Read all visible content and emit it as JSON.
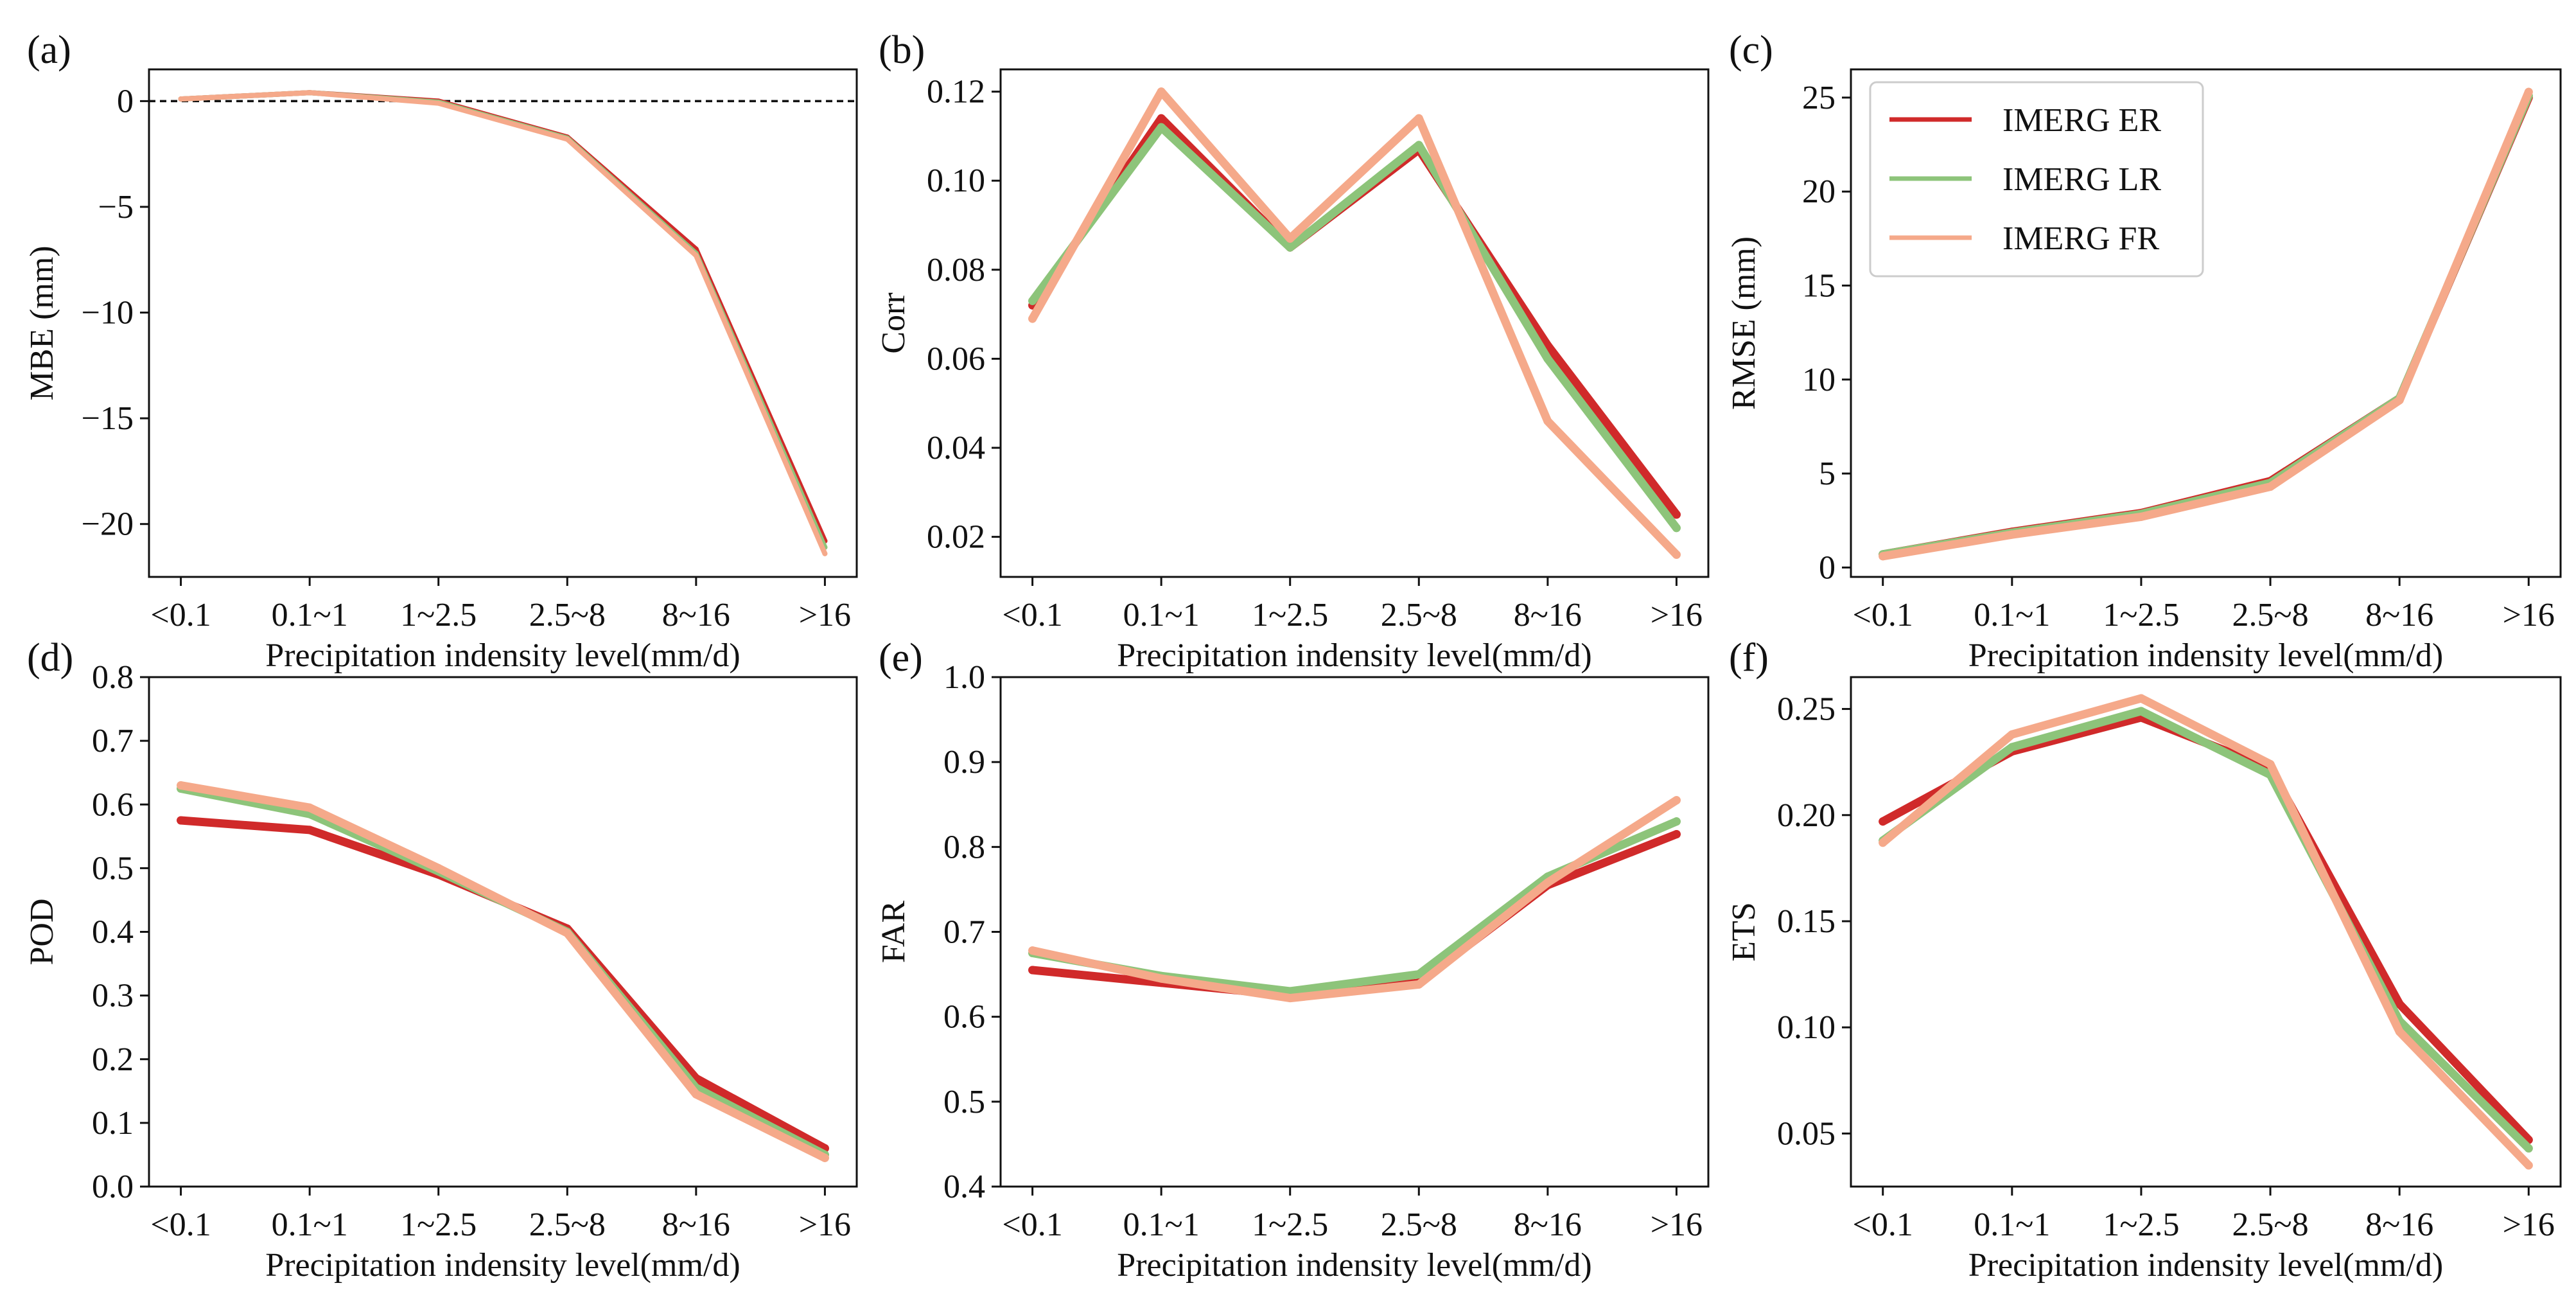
{
  "categories": [
    "<0.1",
    "0.1~1",
    "1~2.5",
    "2.5~8",
    "8~16",
    ">16"
  ],
  "xlabel": "Precipitation indensity level(mm/d)",
  "legend": {
    "location": "upper-left of panel (c)",
    "entries": [
      "IMERG ER",
      "IMERG LR",
      "IMERG FR"
    ]
  },
  "colors": {
    "er": "#d02a2a",
    "lr": "#8dc47a",
    "fr": "#f5a98a",
    "axis": "#111111"
  },
  "chart_data": [
    {
      "type": "line",
      "panel": "(a)",
      "ylabel": "MBE (mm)",
      "ylim": [
        -22.5,
        1.5
      ],
      "yticks": [
        0,
        -5,
        -10,
        -15,
        -20
      ],
      "ytick_labels": [
        "0",
        "−5",
        "−10",
        "−15",
        "−20"
      ],
      "reference_line": 0,
      "series": [
        {
          "name": "IMERG ER",
          "values": [
            0.1,
            0.4,
            0.0,
            -1.7,
            -7.0,
            -20.8
          ]
        },
        {
          "name": "IMERG LR",
          "values": [
            0.1,
            0.4,
            -0.05,
            -1.75,
            -7.2,
            -21.1
          ]
        },
        {
          "name": "IMERG FR",
          "values": [
            0.1,
            0.4,
            -0.1,
            -1.8,
            -7.3,
            -21.4
          ]
        }
      ]
    },
    {
      "type": "line",
      "panel": "(b)",
      "ylabel": "Corr",
      "ylim": [
        0.011,
        0.125
      ],
      "yticks": [
        0.02,
        0.04,
        0.06,
        0.08,
        0.1,
        0.12
      ],
      "ytick_labels": [
        "0.02",
        "0.04",
        "0.06",
        "0.08",
        "0.10",
        "0.12"
      ],
      "series": [
        {
          "name": "IMERG ER",
          "values": [
            0.072,
            0.114,
            0.085,
            0.107,
            0.063,
            0.025
          ]
        },
        {
          "name": "IMERG LR",
          "values": [
            0.073,
            0.112,
            0.085,
            0.108,
            0.06,
            0.022
          ]
        },
        {
          "name": "IMERG FR",
          "values": [
            0.069,
            0.12,
            0.087,
            0.114,
            0.046,
            0.016
          ]
        }
      ]
    },
    {
      "type": "line",
      "panel": "(c)",
      "ylabel": "RMSE (mm)",
      "ylim": [
        -0.5,
        26.5
      ],
      "yticks": [
        0,
        5,
        10,
        15,
        20,
        25
      ],
      "ytick_labels": [
        "0",
        "5",
        "10",
        "15",
        "20",
        "25"
      ],
      "series": [
        {
          "name": "IMERG ER",
          "values": [
            0.7,
            1.9,
            2.9,
            4.6,
            9.0,
            25.0
          ]
        },
        {
          "name": "IMERG LR",
          "values": [
            0.7,
            1.85,
            2.85,
            4.5,
            9.0,
            25.1
          ]
        },
        {
          "name": "IMERG FR",
          "values": [
            0.6,
            1.75,
            2.7,
            4.3,
            8.9,
            25.3
          ]
        }
      ]
    },
    {
      "type": "line",
      "panel": "(d)",
      "ylabel": "POD",
      "ylim": [
        0.0,
        0.8
      ],
      "yticks": [
        0.0,
        0.1,
        0.2,
        0.3,
        0.4,
        0.5,
        0.6,
        0.7,
        0.8
      ],
      "ytick_labels": [
        "0.0",
        "0.1",
        "0.2",
        "0.3",
        "0.4",
        "0.5",
        "0.6",
        "0.7",
        "0.8"
      ],
      "series": [
        {
          "name": "IMERG ER",
          "values": [
            0.575,
            0.56,
            0.49,
            0.405,
            0.17,
            0.06
          ]
        },
        {
          "name": "IMERG LR",
          "values": [
            0.625,
            0.585,
            0.495,
            0.4,
            0.155,
            0.05
          ]
        },
        {
          "name": "IMERG FR",
          "values": [
            0.63,
            0.595,
            0.5,
            0.398,
            0.145,
            0.045
          ]
        }
      ]
    },
    {
      "type": "line",
      "panel": "(e)",
      "ylabel": "FAR",
      "ylim": [
        0.4,
        1.0
      ],
      "yticks": [
        0.4,
        0.5,
        0.6,
        0.7,
        0.8,
        0.9,
        1.0
      ],
      "ytick_labels": [
        "0.4",
        "0.5",
        "0.6",
        "0.7",
        "0.8",
        "0.9",
        "1.0"
      ],
      "series": [
        {
          "name": "IMERG ER",
          "values": [
            0.655,
            0.64,
            0.625,
            0.64,
            0.755,
            0.815
          ]
        },
        {
          "name": "IMERG LR",
          "values": [
            0.675,
            0.648,
            0.63,
            0.65,
            0.765,
            0.83
          ]
        },
        {
          "name": "IMERG FR",
          "values": [
            0.678,
            0.645,
            0.622,
            0.638,
            0.758,
            0.855
          ]
        }
      ]
    },
    {
      "type": "line",
      "panel": "(f)",
      "ylabel": "ETS",
      "ylim": [
        0.025,
        0.265
      ],
      "yticks": [
        0.05,
        0.1,
        0.15,
        0.2,
        0.25
      ],
      "ytick_labels": [
        "0.05",
        "0.10",
        "0.15",
        "0.20",
        "0.25"
      ],
      "series": [
        {
          "name": "IMERG ER",
          "values": [
            0.197,
            0.23,
            0.246,
            0.222,
            0.111,
            0.047
          ]
        },
        {
          "name": "IMERG LR",
          "values": [
            0.188,
            0.232,
            0.249,
            0.219,
            0.103,
            0.043
          ]
        },
        {
          "name": "IMERG FR",
          "values": [
            0.187,
            0.238,
            0.255,
            0.224,
            0.098,
            0.035
          ]
        }
      ]
    }
  ]
}
